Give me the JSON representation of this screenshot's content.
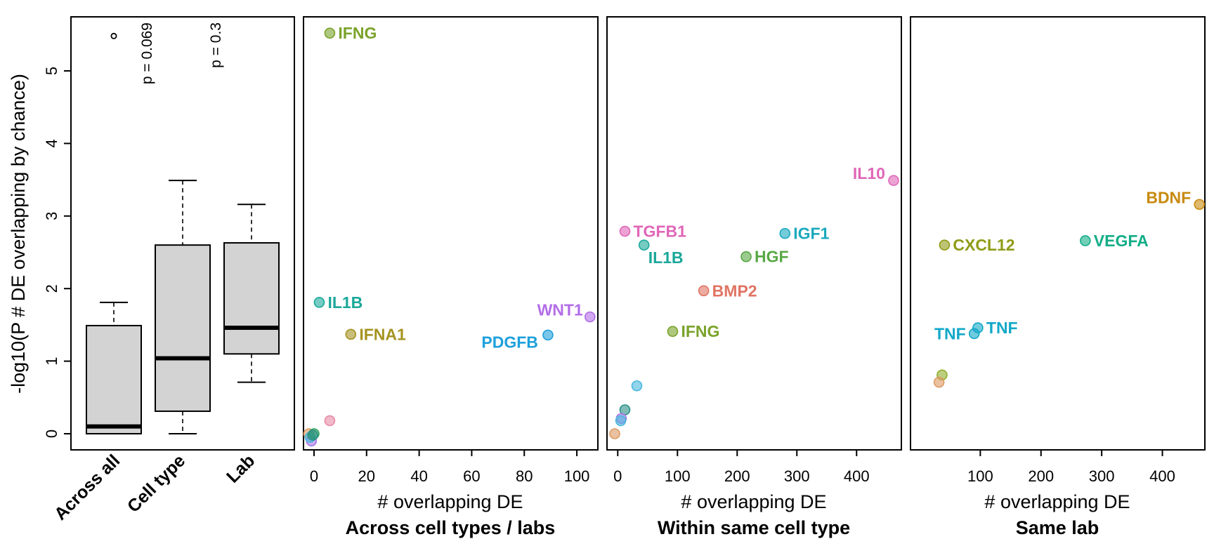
{
  "figure": {
    "ylabel": "-log10(P # DE overlapping by chance)",
    "xlabel": "# overlapping DE"
  },
  "colors": {
    "box_fill": "#d3d3d3",
    "IFNG": "#7aa32a",
    "IL1B": "#1ba89a",
    "IFNA1": "#a59322",
    "PDGFB": "#1ea0dc",
    "WNT1": "#b26ee8",
    "TGFB1": "#e066b8",
    "IGF1": "#1aa9be",
    "HGF": "#58a845",
    "BMP2": "#e07463",
    "IL10": "#e066b8",
    "BDNF": "#c88a0e",
    "CXCL12": "#8f9b17",
    "VEGFA": "#12ad87",
    "TNF": "#12a8c8",
    "orange": "#dc9a62",
    "pink": "#e88aa6",
    "purple": "#a777e6",
    "green": "#2aa55a",
    "olive": "#8fae2a",
    "teal": "#2b8f86",
    "blue": "#4ab8de"
  },
  "chart_data": [
    {
      "type": "box",
      "ylabel": "-log10(P # DE overlapping by chance)",
      "ylim": [
        0,
        5.8
      ],
      "yticks": [
        0,
        1,
        2,
        3,
        4,
        5
      ],
      "categories": [
        "Across all",
        "Cell type",
        "Lab"
      ],
      "boxes": [
        {
          "name": "Across all",
          "whisker_low": 0,
          "q1": 0,
          "median": 0.1,
          "q3": 1.49,
          "whisker_high": 1.81,
          "outliers": [
            5.5
          ],
          "pvalue": ""
        },
        {
          "name": "Cell type",
          "whisker_low": 0,
          "q1": 0.31,
          "median": 1.04,
          "q3": 2.6,
          "whisker_high": 3.49,
          "outliers": [],
          "pvalue": "p = 0.069"
        },
        {
          "name": "Lab",
          "whisker_low": 0.71,
          "q1": 1.1,
          "median": 1.46,
          "q3": 2.63,
          "whisker_high": 3.16,
          "outliers": [],
          "pvalue": "p = 0.3"
        }
      ]
    },
    {
      "type": "scatter",
      "title": "Across cell types / labs",
      "xlabel": "# overlapping DE",
      "xlim": [
        -4,
        108
      ],
      "xticks": [
        0,
        20,
        40,
        60,
        80,
        100
      ],
      "ylim": [
        0,
        5.8
      ],
      "points": [
        {
          "label": "IFNG",
          "x": 6,
          "y": 5.52,
          "color": "IFNG"
        },
        {
          "label": "IL1B",
          "x": 2,
          "y": 1.81,
          "color": "IL1B"
        },
        {
          "label": "IFNA1",
          "x": 14,
          "y": 1.37,
          "color": "IFNA1"
        },
        {
          "label": "PDGFB",
          "x": 89,
          "y": 1.36,
          "color": "PDGFB",
          "label_side": "left"
        },
        {
          "label": "WNT1",
          "x": 105,
          "y": 1.61,
          "color": "WNT1",
          "label_side": "left"
        },
        {
          "label": "",
          "x": 6,
          "y": 0.18,
          "color": "pink"
        },
        {
          "label": "",
          "x": -2,
          "y": 0,
          "color": "orange"
        },
        {
          "label": "",
          "x": -1,
          "y": -0.1,
          "color": "purple"
        },
        {
          "label": "",
          "x": -1.5,
          "y": -0.05,
          "color": "blue"
        },
        {
          "label": "",
          "x": 0,
          "y": 0,
          "color": "green"
        },
        {
          "label": "",
          "x": -0.5,
          "y": -0.02,
          "color": "teal"
        }
      ]
    },
    {
      "type": "scatter",
      "title": "Within same cell type",
      "xlabel": "# overlapping DE",
      "xlim": [
        -18,
        475
      ],
      "xticks": [
        0,
        100,
        200,
        300,
        400
      ],
      "ylim": [
        0,
        5.8
      ],
      "points": [
        {
          "label": "IL10",
          "x": 462,
          "y": 3.49,
          "color": "IL10",
          "label_side": "left"
        },
        {
          "label": "TGFB1",
          "x": 12,
          "y": 2.79,
          "color": "TGFB1"
        },
        {
          "label": "IGF1",
          "x": 280,
          "y": 2.76,
          "color": "IGF1"
        },
        {
          "label": "IL1B",
          "x": 44,
          "y": 2.6,
          "color": "IL1B",
          "label_below": true
        },
        {
          "label": "HGF",
          "x": 215,
          "y": 2.44,
          "color": "HGF"
        },
        {
          "label": "BMP2",
          "x": 144,
          "y": 1.97,
          "color": "BMP2"
        },
        {
          "label": "IFNG",
          "x": 92,
          "y": 1.41,
          "color": "IFNG"
        },
        {
          "label": "",
          "x": 32,
          "y": 0.66,
          "color": "blue"
        },
        {
          "label": "",
          "x": 12,
          "y": 0.33,
          "color": "teal"
        },
        {
          "label": "",
          "x": 6,
          "y": 0.21,
          "color": "purple"
        },
        {
          "label": "",
          "x": 5,
          "y": 0.18,
          "color": "blue"
        },
        {
          "label": "",
          "x": -5,
          "y": 0,
          "color": "orange"
        }
      ]
    },
    {
      "type": "scatter",
      "title": "Same lab",
      "xlabel": "# overlapping DE",
      "xlim": [
        -15,
        470
      ],
      "xticks": [
        100,
        200,
        300,
        400
      ],
      "ylim": [
        0,
        5.8
      ],
      "points": [
        {
          "label": "BDNF",
          "x": 461,
          "y": 3.16,
          "color": "BDNF",
          "label_side": "left"
        },
        {
          "label": "CXCL12",
          "x": 41,
          "y": 2.6,
          "color": "CXCL12"
        },
        {
          "label": "VEGFA",
          "x": 273,
          "y": 2.66,
          "color": "VEGFA"
        },
        {
          "label": "TNF",
          "x": 96,
          "y": 1.46,
          "color": "TNF"
        },
        {
          "label": "TNF",
          "x": 90,
          "y": 1.38,
          "color": "TNF",
          "label_side": "left"
        },
        {
          "label": "",
          "x": 37,
          "y": 0.81,
          "color": "olive"
        },
        {
          "label": "",
          "x": 32,
          "y": 0.71,
          "color": "orange"
        }
      ]
    }
  ]
}
